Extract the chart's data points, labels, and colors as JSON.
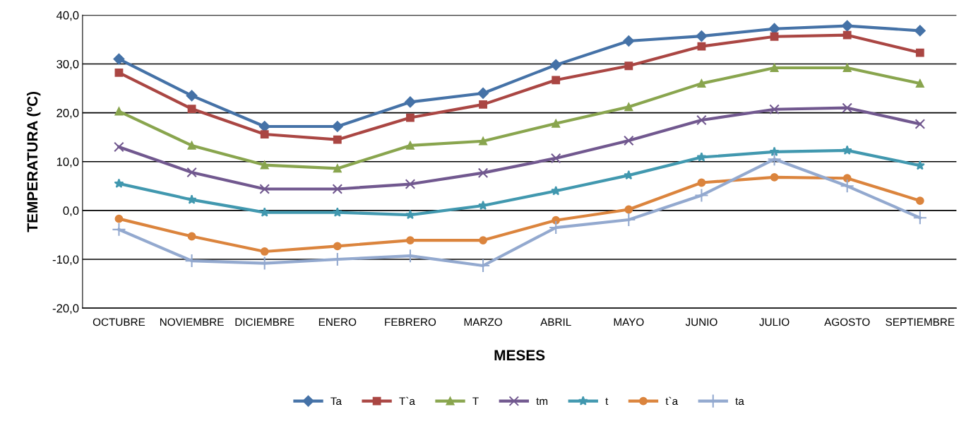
{
  "chart_data": {
    "type": "line",
    "xlabel": "MESES",
    "ylabel": "TEMPERATURA (ºC)",
    "categories": [
      "OCTUBRE",
      "NOVIEMBRE",
      "DICIEMBRE",
      "ENERO",
      "FEBRERO",
      "MARZO",
      "ABRIL",
      "MAYO",
      "JUNIO",
      "JULIO",
      "AGOSTO",
      "SEPTIEMBRE"
    ],
    "series": [
      {
        "name": "Ta",
        "color": "#4572a7",
        "marker": "diamond",
        "values": [
          31,
          23.5,
          17.2,
          17.2,
          22.2,
          24,
          29.8,
          34.7,
          35.7,
          37.2,
          37.8,
          36.8
        ]
      },
      {
        "name": "T`a",
        "color": "#aa4643",
        "marker": "square",
        "values": [
          28.2,
          20.8,
          15.6,
          14.5,
          19,
          21.7,
          26.7,
          29.6,
          33.6,
          35.6,
          35.9,
          32.3
        ]
      },
      {
        "name": "T",
        "color": "#89a54e",
        "marker": "triangle",
        "values": [
          20.3,
          13.3,
          9.3,
          8.6,
          13.3,
          14.2,
          17.8,
          21.2,
          26,
          29.2,
          29.2,
          26
        ]
      },
      {
        "name": "tm",
        "color": "#71588f",
        "marker": "x",
        "values": [
          13,
          7.8,
          4.4,
          4.4,
          5.4,
          7.7,
          10.7,
          14.3,
          18.5,
          20.7,
          21,
          17.7
        ]
      },
      {
        "name": "t",
        "color": "#4198af",
        "marker": "star",
        "values": [
          5.5,
          2.2,
          -0.4,
          -0.4,
          -0.9,
          1,
          4,
          7.2,
          10.9,
          12,
          12.3,
          9.2
        ]
      },
      {
        "name": "t`a",
        "color": "#db843d",
        "marker": "circle",
        "values": [
          -1.7,
          -5.3,
          -8.4,
          -7.3,
          -6.1,
          -6.1,
          -2,
          0.2,
          5.7,
          6.8,
          6.6,
          2
        ]
      },
      {
        "name": "ta",
        "color": "#93a9cf",
        "marker": "cross",
        "values": [
          -3.9,
          -10.3,
          -10.8,
          -10,
          -9.3,
          -11.3,
          -3.5,
          -1.9,
          3.1,
          10.5,
          5,
          -1.5
        ]
      }
    ],
    "ylim": [
      -20,
      40
    ],
    "yticks": [
      {
        "value": -20,
        "label": "-20,0"
      },
      {
        "value": -10,
        "label": "-10,0"
      },
      {
        "value": 0,
        "label": "0,0"
      },
      {
        "value": 10,
        "label": "10,0"
      },
      {
        "value": 20,
        "label": "20,0"
      },
      {
        "value": 30,
        "label": "30,0"
      },
      {
        "value": 40,
        "label": "40,0"
      }
    ],
    "grid": "y",
    "legend": "bottom"
  }
}
